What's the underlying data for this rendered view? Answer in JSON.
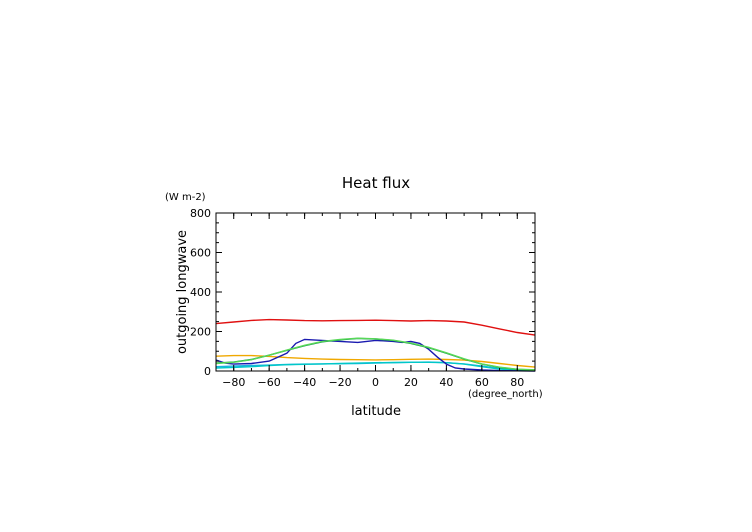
{
  "chart_data": {
    "type": "line",
    "title": "Heat flux",
    "ylabel": "outgoing longwave",
    "yunit": "(W m-2)",
    "xlabel": "latitude",
    "xunit": "(degree_north)",
    "xlim": [
      -90,
      90
    ],
    "ylim": [
      0,
      800
    ],
    "xticks": [
      -80,
      -60,
      -40,
      -20,
      0,
      20,
      40,
      60,
      80
    ],
    "xtick_labels": [
      "−80",
      "−60",
      "−40",
      "−20",
      "0",
      "20",
      "40",
      "60",
      "80"
    ],
    "yticks": [
      0,
      200,
      400,
      600,
      800
    ],
    "ytick_labels": [
      "0",
      "200",
      "400",
      "600",
      "800"
    ],
    "series": [
      {
        "color": "#e01010",
        "x": [
          -90,
          -80,
          -70,
          -60,
          -50,
          -40,
          -30,
          -20,
          -10,
          0,
          10,
          20,
          30,
          40,
          50,
          60,
          70,
          80,
          90
        ],
        "y": [
          240,
          248,
          256,
          260,
          258,
          255,
          254,
          255,
          256,
          257,
          255,
          253,
          255,
          253,
          248,
          232,
          213,
          195,
          182
        ]
      },
      {
        "color": "#f0a800",
        "x": [
          -90,
          -80,
          -70,
          -60,
          -50,
          -40,
          -30,
          -20,
          -10,
          0,
          10,
          20,
          30,
          40,
          50,
          60,
          70,
          80,
          90
        ],
        "y": [
          75,
          78,
          78,
          74,
          68,
          64,
          60,
          58,
          57,
          56,
          57,
          59,
          60,
          58,
          55,
          48,
          38,
          28,
          20
        ]
      },
      {
        "color": "#1ab0e0",
        "x": [
          -90,
          -80,
          -70,
          -60,
          -50,
          -40,
          -30,
          -20,
          -10,
          0,
          10,
          20,
          30,
          40,
          50,
          60,
          70,
          80,
          90
        ],
        "y": [
          22,
          25,
          28,
          30,
          33,
          35,
          36,
          37,
          38,
          40,
          42,
          44,
          45,
          42,
          36,
          25,
          12,
          5,
          2
        ]
      },
      {
        "color": "#00c8c8",
        "x": [
          -90,
          -80,
          -70,
          -60,
          -50,
          -40,
          -30,
          -20,
          -10,
          0,
          10,
          20,
          30,
          40,
          50,
          60,
          70,
          80,
          90
        ],
        "y": [
          15,
          18,
          22,
          28,
          32,
          34,
          36,
          38,
          40,
          42,
          43,
          44,
          44,
          42,
          35,
          22,
          10,
          4,
          2
        ]
      },
      {
        "color": "#1a1ab0",
        "x": [
          -90,
          -85,
          -80,
          -70,
          -60,
          -50,
          -45,
          -40,
          -30,
          -20,
          -10,
          0,
          10,
          15,
          20,
          25,
          30,
          35,
          40,
          45,
          50,
          60,
          70,
          80,
          90
        ],
        "y": [
          55,
          40,
          35,
          38,
          50,
          90,
          140,
          160,
          155,
          150,
          145,
          155,
          150,
          145,
          150,
          140,
          110,
          70,
          35,
          15,
          10,
          5,
          2,
          1,
          0
        ]
      },
      {
        "color": "#008a40",
        "x": [
          -90,
          -80,
          -70,
          -60,
          -50,
          -40,
          -30,
          -20,
          -10,
          0,
          10,
          20,
          30,
          40,
          50,
          60,
          70,
          80,
          90
        ],
        "y": [
          40,
          45,
          58,
          80,
          105,
          128,
          148,
          158,
          165,
          162,
          155,
          140,
          118,
          90,
          60,
          35,
          18,
          8,
          5
        ]
      },
      {
        "color": "#58d858",
        "x": [
          -90,
          -80,
          -70,
          -60,
          -50,
          -40,
          -30,
          -20,
          -10,
          0,
          10,
          20,
          30,
          40,
          50,
          60,
          70,
          80,
          90
        ],
        "y": [
          38,
          44,
          57,
          80,
          106,
          130,
          150,
          160,
          166,
          163,
          156,
          142,
          120,
          92,
          62,
          36,
          19,
          9,
          6
        ]
      }
    ]
  }
}
